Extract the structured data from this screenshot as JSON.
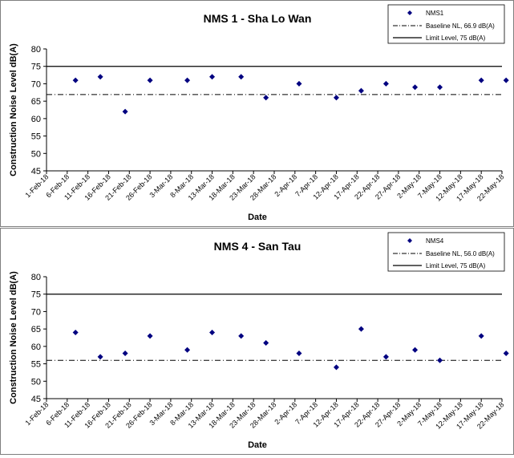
{
  "chart_data": [
    {
      "type": "scatter",
      "title": "NMS 1 - Sha Lo Wan",
      "xlabel": "Date",
      "ylabel": "Construction Noise Level  dB(A)",
      "ylim": [
        45,
        80
      ],
      "yticks": [
        45,
        50,
        55,
        60,
        65,
        70,
        75,
        80
      ],
      "grid": false,
      "legend_position": "top-right",
      "x_tick_labels": [
        "1-Feb-18",
        "6-Feb-18",
        "11-Feb-18",
        "16-Feb-18",
        "21-Feb-18",
        "26-Feb-18",
        "3-Mar-18",
        "8-Mar-18",
        "13-Mar-18",
        "18-Mar-18",
        "23-Mar-18",
        "28-Mar-18",
        "2-Apr-18",
        "7-Apr-18",
        "12-Apr-18",
        "17-Apr-18",
        "22-Apr-18",
        "27-Apr-18",
        "2-May-18",
        "7-May-18",
        "12-May-18",
        "17-May-18",
        "22-May-18"
      ],
      "series": [
        {
          "name": "NMS1",
          "marker": "diamond",
          "color": "#000080",
          "points": [
            {
              "x": "2018-02-08",
              "y": 71
            },
            {
              "x": "2018-02-14",
              "y": 72
            },
            {
              "x": "2018-02-20",
              "y": 62
            },
            {
              "x": "2018-02-26",
              "y": 71
            },
            {
              "x": "2018-03-07",
              "y": 71
            },
            {
              "x": "2018-03-13",
              "y": 72
            },
            {
              "x": "2018-03-20",
              "y": 72
            },
            {
              "x": "2018-03-26",
              "y": 66
            },
            {
              "x": "2018-04-03",
              "y": 70
            },
            {
              "x": "2018-04-12",
              "y": 66
            },
            {
              "x": "2018-04-18",
              "y": 68
            },
            {
              "x": "2018-04-24",
              "y": 70
            },
            {
              "x": "2018-05-01",
              "y": 69
            },
            {
              "x": "2018-05-07",
              "y": 69
            },
            {
              "x": "2018-05-17",
              "y": 71
            },
            {
              "x": "2018-05-23",
              "y": 71
            }
          ]
        }
      ],
      "lines": [
        {
          "name": "Baseline NL, 66.9 dB(A)",
          "y": 66.9,
          "style": "dash-dot",
          "color": "#000000"
        },
        {
          "name": "Limit Level, 75 dB(A)",
          "y": 75,
          "style": "solid",
          "color": "#000000"
        }
      ]
    },
    {
      "type": "scatter",
      "title": "NMS 4 - San Tau",
      "xlabel": "Date",
      "ylabel": "Construction Noise Level  dB(A)",
      "ylim": [
        45,
        80
      ],
      "yticks": [
        45,
        50,
        55,
        60,
        65,
        70,
        75,
        80
      ],
      "grid": false,
      "legend_position": "top-right",
      "x_tick_labels": [
        "1-Feb-18",
        "6-Feb-18",
        "11-Feb-18",
        "16-Feb-18",
        "21-Feb-18",
        "26-Feb-18",
        "3-Mar-18",
        "8-Mar-18",
        "13-Mar-18",
        "18-Mar-18",
        "23-Mar-18",
        "28-Mar-18",
        "2-Apr-18",
        "7-Apr-18",
        "12-Apr-18",
        "17-Apr-18",
        "22-Apr-18",
        "27-Apr-18",
        "2-May-18",
        "7-May-18",
        "12-May-18",
        "17-May-18",
        "22-May-18"
      ],
      "series": [
        {
          "name": "NMS4",
          "marker": "diamond",
          "color": "#000080",
          "points": [
            {
              "x": "2018-02-08",
              "y": 64
            },
            {
              "x": "2018-02-14",
              "y": 57
            },
            {
              "x": "2018-02-20",
              "y": 58
            },
            {
              "x": "2018-02-26",
              "y": 63
            },
            {
              "x": "2018-03-07",
              "y": 59
            },
            {
              "x": "2018-03-13",
              "y": 64
            },
            {
              "x": "2018-03-20",
              "y": 63
            },
            {
              "x": "2018-03-26",
              "y": 61
            },
            {
              "x": "2018-04-03",
              "y": 58
            },
            {
              "x": "2018-04-12",
              "y": 54
            },
            {
              "x": "2018-04-18",
              "y": 65
            },
            {
              "x": "2018-04-24",
              "y": 57
            },
            {
              "x": "2018-05-01",
              "y": 59
            },
            {
              "x": "2018-05-07",
              "y": 56
            },
            {
              "x": "2018-05-17",
              "y": 63
            },
            {
              "x": "2018-05-23",
              "y": 58
            }
          ]
        }
      ],
      "lines": [
        {
          "name": "Baseline NL, 56.0 dB(A)",
          "y": 56.0,
          "style": "dash-dot",
          "color": "#000000"
        },
        {
          "name": "Limit Level, 75 dB(A)",
          "y": 75,
          "style": "solid",
          "color": "#000000"
        }
      ]
    }
  ]
}
